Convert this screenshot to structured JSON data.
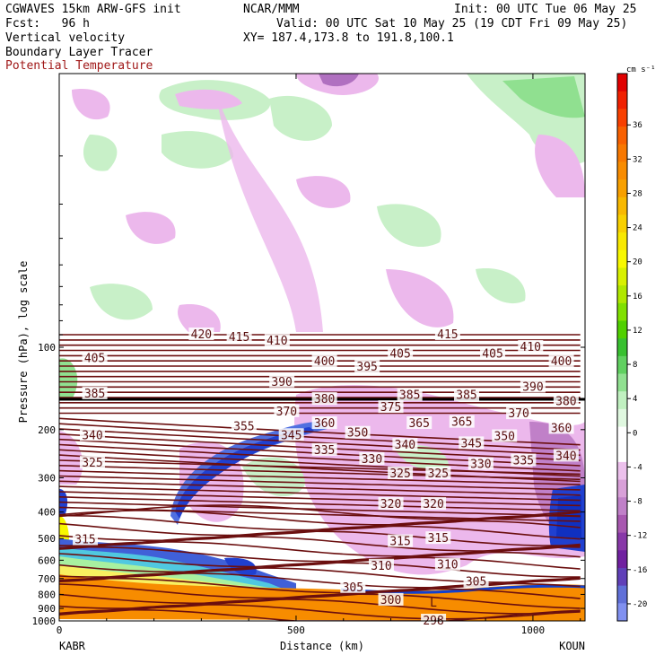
{
  "header": {
    "model": "CGWAVES 15km ARW-GFS init",
    "org": "NCAR/MMM",
    "init": "Init: 00 UTC Tue 06 May 25",
    "fcst": "Fcst:   96 h",
    "valid": "Valid: 00 UTC Sat 10 May 25 (19 CDT Fri 09 May 25)",
    "xy": "XY= 187.4,173.8 to 191.8,100.1",
    "field1": "Vertical velocity",
    "field2": "Boundary Layer Tracer",
    "field3": "Potential Temperature"
  },
  "colors": {
    "theta": "#6b0f0f",
    "field3_text": "#a01818",
    "terrain": "#f78c00",
    "bg": "#ffffff"
  },
  "chart_data": {
    "type": "heatmap",
    "title": "Vertical velocity / Boundary Layer Tracer / Potential Temperature cross-section",
    "xlabel": "Distance (km)",
    "ylabel": "Pressure (hPa), log scale",
    "xlim": [
      0,
      1110
    ],
    "ylim": [
      1000,
      10
    ],
    "y_scale": "log",
    "x_ticks": [
      "0",
      "500",
      "1000"
    ],
    "y_ticks": [
      "100",
      "200",
      "300",
      "400",
      "500",
      "600",
      "700",
      "800",
      "900",
      "1000"
    ],
    "endpoints": {
      "left": "KABR",
      "right": "KOUN"
    },
    "colorbar": {
      "units": "cm s⁻¹",
      "tick_labels": [
        "36",
        "32",
        "28",
        "24",
        "20",
        "16",
        "12",
        "8",
        "4",
        "0",
        "-4",
        "-8",
        "-12",
        "-16",
        "-20"
      ],
      "colors": [
        "#e00000",
        "#f02000",
        "#f84000",
        "#f86000",
        "#f87800",
        "#f88c00",
        "#f8a000",
        "#f8b800",
        "#f8d000",
        "#f8e800",
        "#f8f800",
        "#d8f000",
        "#b0e800",
        "#80e000",
        "#50d000",
        "#38c030",
        "#60d060",
        "#90e090",
        "#c0f0c0",
        "#e0f8e0",
        "#ffffff",
        "#ffffff",
        "#ecc0ec",
        "#d8a0d8",
        "#c080c8",
        "#a858b0",
        "#8838a8",
        "#7020a0",
        "#6040b8",
        "#6070d8",
        "#8090f0"
      ]
    },
    "theta_labels": [
      {
        "value": 420,
        "km": 300,
        "p": 90
      },
      {
        "value": 415,
        "km": 380,
        "p": 92
      },
      {
        "value": 410,
        "km": 460,
        "p": 95
      },
      {
        "value": 405,
        "km": 75,
        "p": 110
      },
      {
        "value": 400,
        "km": 560,
        "p": 113
      },
      {
        "value": 395,
        "km": 650,
        "p": 118
      },
      {
        "value": 405,
        "km": 720,
        "p": 106
      },
      {
        "value": 415,
        "km": 820,
        "p": 90
      },
      {
        "value": 405,
        "km": 915,
        "p": 106
      },
      {
        "value": 410,
        "km": 995,
        "p": 100
      },
      {
        "value": 400,
        "km": 1060,
        "p": 113
      },
      {
        "value": 390,
        "km": 470,
        "p": 134
      },
      {
        "value": 385,
        "km": 75,
        "p": 148
      },
      {
        "value": 380,
        "km": 560,
        "p": 155
      },
      {
        "value": 385,
        "km": 740,
        "p": 150
      },
      {
        "value": 385,
        "km": 860,
        "p": 150
      },
      {
        "value": 390,
        "km": 1000,
        "p": 140
      },
      {
        "value": 380,
        "km": 1070,
        "p": 158
      },
      {
        "value": 375,
        "km": 700,
        "p": 166
      },
      {
        "value": 370,
        "km": 480,
        "p": 172
      },
      {
        "value": 370,
        "km": 970,
        "p": 175
      },
      {
        "value": 360,
        "km": 560,
        "p": 190
      },
      {
        "value": 355,
        "km": 390,
        "p": 195
      },
      {
        "value": 365,
        "km": 760,
        "p": 190
      },
      {
        "value": 365,
        "km": 850,
        "p": 188
      },
      {
        "value": 360,
        "km": 1060,
        "p": 198
      },
      {
        "value": 340,
        "km": 70,
        "p": 210
      },
      {
        "value": 345,
        "km": 490,
        "p": 210
      },
      {
        "value": 350,
        "km": 630,
        "p": 206
      },
      {
        "value": 350,
        "km": 940,
        "p": 212
      },
      {
        "value": 345,
        "km": 870,
        "p": 225
      },
      {
        "value": 340,
        "km": 730,
        "p": 228
      },
      {
        "value": 335,
        "km": 560,
        "p": 238
      },
      {
        "value": 340,
        "km": 1070,
        "p": 250
      },
      {
        "value": 335,
        "km": 980,
        "p": 260
      },
      {
        "value": 330,
        "km": 890,
        "p": 268
      },
      {
        "value": 330,
        "km": 660,
        "p": 257
      },
      {
        "value": 325,
        "km": 70,
        "p": 265
      },
      {
        "value": 325,
        "km": 720,
        "p": 290
      },
      {
        "value": 325,
        "km": 800,
        "p": 290
      },
      {
        "value": 320,
        "km": 700,
        "p": 375
      },
      {
        "value": 320,
        "km": 790,
        "p": 375
      },
      {
        "value": 315,
        "km": 55,
        "p": 505
      },
      {
        "value": 315,
        "km": 720,
        "p": 513
      },
      {
        "value": 315,
        "km": 800,
        "p": 500
      },
      {
        "value": 310,
        "km": 680,
        "p": 630
      },
      {
        "value": 310,
        "km": 820,
        "p": 625
      },
      {
        "value": 305,
        "km": 620,
        "p": 755
      },
      {
        "value": 305,
        "km": 880,
        "p": 720
      },
      {
        "value": 300,
        "km": 700,
        "p": 840
      },
      {
        "value": 298,
        "km": 790,
        "p": 1000
      }
    ],
    "low_marker": {
      "text": "L",
      "km": 790,
      "p": 860
    },
    "thick_line_p": 155
  }
}
